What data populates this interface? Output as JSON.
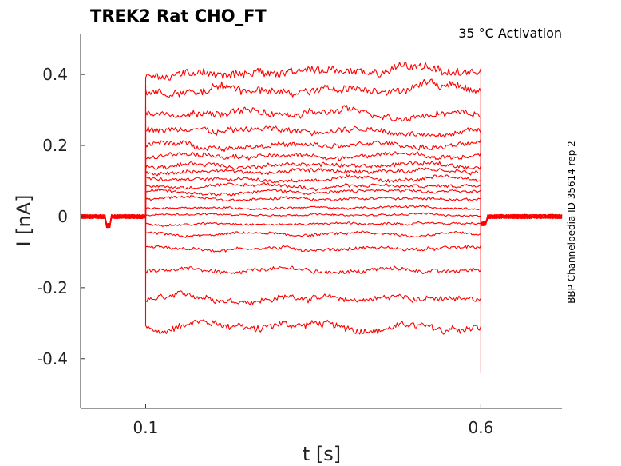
{
  "chart_data": {
    "type": "line",
    "title": "TREK2  Rat  CHO_FT",
    "annotation": "35 °C  Activation",
    "side_label": "BBP Channelpedia ID 35614 rep 2",
    "xlabel": "t [s]",
    "ylabel": "I [nA]",
    "xlim": [
      0.003,
      0.721
    ],
    "ylim": [
      -0.54,
      0.515
    ],
    "x_ticks": [
      {
        "value": 0.1,
        "label": "0.1"
      },
      {
        "value": 0.6,
        "label": "0.6"
      }
    ],
    "y_ticks": [
      {
        "value": 0.4,
        "label": "0.4"
      },
      {
        "value": 0.2,
        "label": "0.2"
      },
      {
        "value": 0,
        "label": "0"
      },
      {
        "value": -0.2,
        "label": "-0.2"
      },
      {
        "value": -0.4,
        "label": "-0.4"
      }
    ],
    "grid": false,
    "color": "#ff0000",
    "holding_level": 0.0,
    "step_onset": 0.1,
    "step_offset": 0.6,
    "sweep_levels": [
      -0.31,
      -0.23,
      -0.15,
      -0.09,
      -0.05,
      -0.02,
      0.005,
      0.025,
      0.05,
      0.07,
      0.085,
      0.105,
      0.125,
      0.145,
      0.17,
      0.2,
      0.24,
      0.29,
      0.35,
      0.4
    ]
  }
}
